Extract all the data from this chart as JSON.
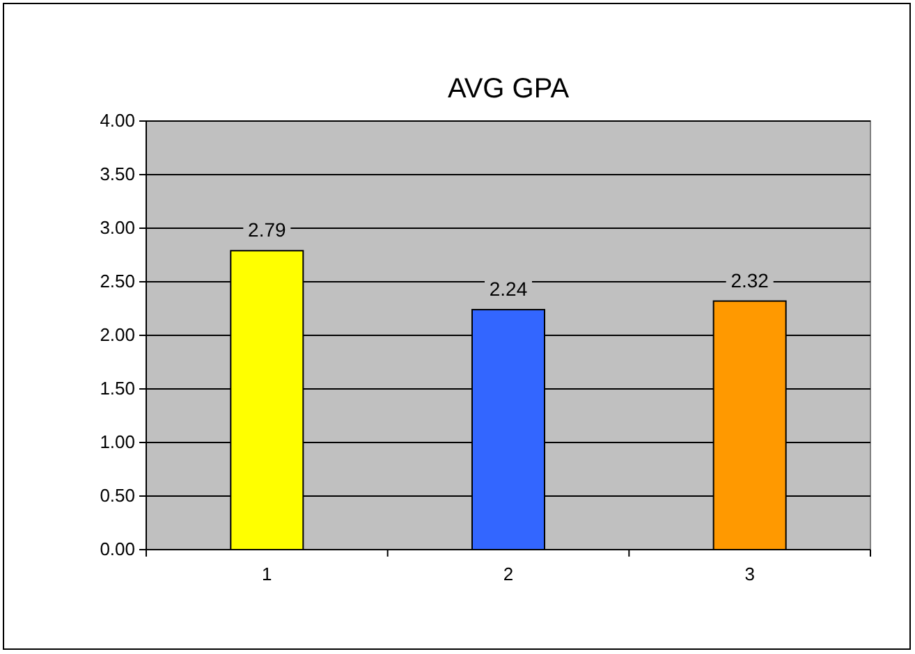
{
  "chart_data": {
    "type": "bar",
    "title": "AVG GPA",
    "categories": [
      "1",
      "2",
      "3"
    ],
    "values": [
      2.79,
      2.24,
      2.32
    ],
    "colors": [
      "#ffff00",
      "#3366ff",
      "#ff9900"
    ],
    "ylim": [
      0,
      4
    ],
    "yticks": [
      {
        "value": 0,
        "label": "0.00"
      },
      {
        "value": 0.5,
        "label": "0.50"
      },
      {
        "value": 1,
        "label": "1.00"
      },
      {
        "value": 1.5,
        "label": "1.50"
      },
      {
        "value": 2,
        "label": "2.00"
      },
      {
        "value": 2.5,
        "label": "2.50"
      },
      {
        "value": 3,
        "label": "3.00"
      },
      {
        "value": 3.5,
        "label": "3.50"
      },
      {
        "value": 4,
        "label": "4.00"
      }
    ],
    "grid": "y",
    "data_labels": true
  }
}
